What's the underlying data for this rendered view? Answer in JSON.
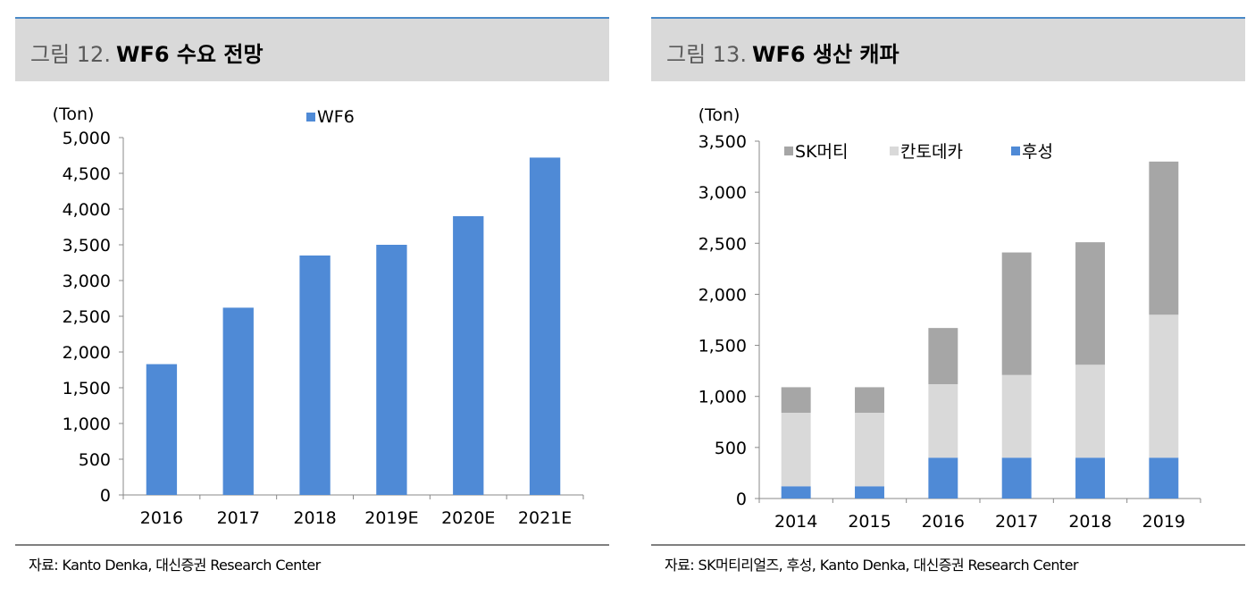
{
  "left_panel": {
    "fig_no": "그림 12.",
    "fig_title": "WF6 수요 전망",
    "source": "자료: Kanto Denka, 대신증권 Research Center"
  },
  "right_panel": {
    "fig_no": "그림 13.",
    "fig_title": "WF6 생산 캐파",
    "source": "자료: SK머티리얼즈, 후성, Kanto Denka, 대신증권 Research Center"
  },
  "chart_data": [
    {
      "type": "bar",
      "unit": "(Ton)",
      "categories": [
        "2016",
        "2017",
        "2018",
        "2019E",
        "2020E",
        "2021E"
      ],
      "series": [
        {
          "name": "WF6",
          "values": [
            1830,
            2620,
            3350,
            3500,
            3900,
            4720
          ],
          "color": "#4f8ad6"
        }
      ],
      "ylim": [
        0,
        5000
      ],
      "yticks": [
        0,
        500,
        1000,
        1500,
        2000,
        2500,
        3000,
        3500,
        4000,
        4500,
        5000
      ],
      "ytick_labels": [
        "0",
        "500",
        "1,000",
        "1,500",
        "2,000",
        "2,500",
        "3,000",
        "3,500",
        "4,000",
        "4,500",
        "5,000"
      ],
      "grid": false,
      "legend": "top"
    },
    {
      "type": "bar",
      "stacked": true,
      "unit": "(Ton)",
      "categories": [
        "2014",
        "2015",
        "2016",
        "2017",
        "2018",
        "2019"
      ],
      "series": [
        {
          "name": "후성",
          "values": [
            120,
            120,
            400,
            400,
            400,
            400
          ],
          "color": "#4f8ad6"
        },
        {
          "name": "칸토데카",
          "values": [
            720,
            720,
            720,
            810,
            910,
            1400
          ],
          "color": "#d9d9d9"
        },
        {
          "name": "SK머티",
          "values": [
            250,
            250,
            550,
            1200,
            1200,
            1500
          ],
          "color": "#a6a6a6"
        }
      ],
      "legend_order": [
        "SK머티",
        "칸토데카",
        "후성"
      ],
      "ylim": [
        0,
        3500
      ],
      "yticks": [
        0,
        500,
        1000,
        1500,
        2000,
        2500,
        3000,
        3500
      ],
      "ytick_labels": [
        "0",
        "500",
        "1,000",
        "1,500",
        "2,000",
        "2,500",
        "3,000",
        "3,500"
      ],
      "grid": false,
      "legend": "top-left"
    }
  ]
}
